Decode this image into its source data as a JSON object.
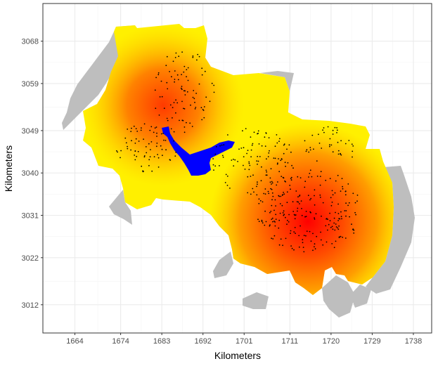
{
  "chart_data": {
    "type": "heatmap",
    "xlabel": "Kilometers",
    "ylabel": "Kilometers",
    "x_ticks": [
      "1664",
      "1674",
      "1683",
      "1692",
      "1701",
      "1711",
      "1720",
      "1729",
      "1738"
    ],
    "y_ticks": [
      "3068",
      "3059",
      "3049",
      "3040",
      "3031",
      "3022",
      "3012"
    ],
    "xlim": [
      1657,
      1742
    ],
    "ylim": [
      3006,
      3076
    ],
    "grid": true,
    "color_scale": [
      "#ff0000",
      "#ff8c00",
      "#ffee00"
    ],
    "hotspots": [
      {
        "x": 1716.5,
        "y": 3030.5,
        "intensity": 1.0
      },
      {
        "x": 1683,
        "y": 3053.5,
        "intensity": 0.75
      }
    ],
    "colors": {
      "outside_region": "#bebebe",
      "water_body": "#0000ff",
      "points": "#000000",
      "panel_background": "#ffffff",
      "grid": "#ebebeb",
      "panel_border": "#333333"
    }
  }
}
